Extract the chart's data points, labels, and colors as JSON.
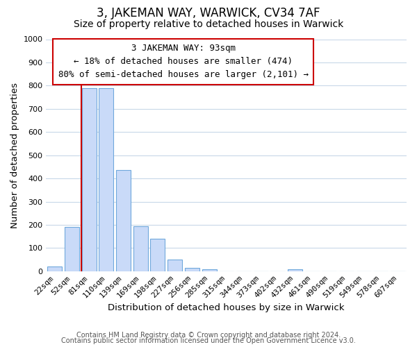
{
  "title": "3, JAKEMAN WAY, WARWICK, CV34 7AF",
  "subtitle": "Size of property relative to detached houses in Warwick",
  "xlabel": "Distribution of detached houses by size in Warwick",
  "ylabel": "Number of detached properties",
  "bar_labels": [
    "22sqm",
    "52sqm",
    "81sqm",
    "110sqm",
    "139sqm",
    "169sqm",
    "198sqm",
    "227sqm",
    "256sqm",
    "285sqm",
    "315sqm",
    "344sqm",
    "373sqm",
    "402sqm",
    "432sqm",
    "461sqm",
    "490sqm",
    "519sqm",
    "549sqm",
    "578sqm",
    "607sqm"
  ],
  "bar_values": [
    20,
    190,
    790,
    790,
    435,
    195,
    140,
    50,
    15,
    10,
    0,
    0,
    0,
    0,
    10,
    0,
    0,
    0,
    0,
    0,
    0
  ],
  "bar_color": "#c9daf8",
  "bar_edge_color": "#6fa8dc",
  "property_bin_index": 2,
  "line_color": "#cc0000",
  "annotation_line1": "3 JAKEMAN WAY: 93sqm",
  "annotation_line2": "← 18% of detached houses are smaller (474)",
  "annotation_line3": "80% of semi-detached houses are larger (2,101) →",
  "ylim": [
    0,
    1000
  ],
  "yticks": [
    0,
    100,
    200,
    300,
    400,
    500,
    600,
    700,
    800,
    900,
    1000
  ],
  "footer_line1": "Contains HM Land Registry data © Crown copyright and database right 2024.",
  "footer_line2": "Contains public sector information licensed under the Open Government Licence v3.0.",
  "background_color": "#ffffff",
  "grid_color": "#c8d8e8",
  "title_fontsize": 12,
  "subtitle_fontsize": 10,
  "axis_label_fontsize": 9.5,
  "tick_fontsize": 8,
  "annotation_fontsize": 9,
  "footer_fontsize": 7
}
